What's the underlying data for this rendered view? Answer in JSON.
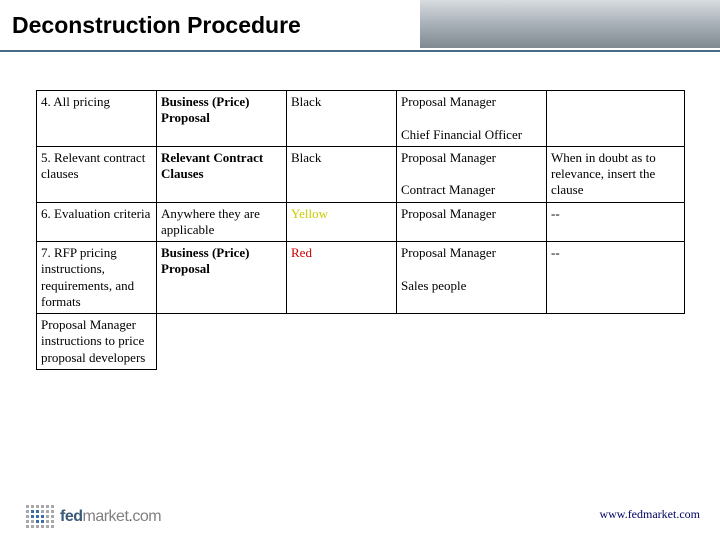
{
  "title": "Deconstruction Procedure",
  "table": {
    "rows": [
      {
        "c0": "4. All pricing",
        "c1": "Business (Price) Proposal",
        "c1_bold": true,
        "c2": "Black",
        "c2_color": "black",
        "c3_lines": [
          "Proposal Manager",
          "",
          "Chief Financial Officer"
        ],
        "c4": ""
      },
      {
        "c0": "5. Relevant contract clauses",
        "c1": "Relevant Contract Clauses",
        "c1_bold": true,
        "c2": "Black",
        "c2_color": "black",
        "c3_lines": [
          "Proposal Manager",
          "",
          "Contract Manager"
        ],
        "c4": "When in doubt as to relevance, insert the clause"
      },
      {
        "c0": "6. Evaluation criteria",
        "c1": "Anywhere they are applicable",
        "c1_bold": false,
        "c2": "Yellow",
        "c2_color": "yellow",
        "c3_lines": [
          "Proposal Manager"
        ],
        "c4": "--"
      },
      {
        "c0": "7. RFP pricing instructions, requirements, and formats",
        "c1": "Business (Price) Proposal",
        "c1_bold": true,
        "c2": "Red",
        "c2_color": "red",
        "c3_lines": [
          "Proposal Manager",
          "",
          "Sales people"
        ],
        "c4": "--"
      }
    ],
    "trailing_row_c0": "Proposal Manager instructions to price proposal developers"
  },
  "footer_url": "www.fedmarket.com",
  "logo": {
    "fed": "fed",
    "market": "market",
    "dot": ".",
    "com": "com"
  },
  "colors": {
    "title_underline": "#4a6a8a",
    "yellow": "#cccc00",
    "red": "#cc0000",
    "url": "#000066"
  }
}
